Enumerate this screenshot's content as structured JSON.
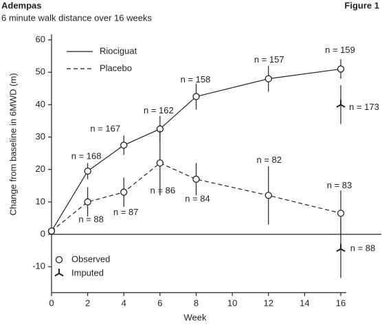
{
  "chart_data": {
    "type": "line",
    "title": "Adempas",
    "subtitle": "6 minute walk distance over 16 weeks",
    "figure_label": "Figure 1",
    "x_label": "Week",
    "y_label": "Change from baseline in 6MWD (m)",
    "x": [
      0,
      2,
      4,
      6,
      8,
      12,
      16
    ],
    "xlim": [
      0,
      16
    ],
    "xticks": [
      0,
      2,
      4,
      6,
      8,
      10,
      12,
      14,
      16
    ],
    "ylim": [
      -18,
      60
    ],
    "yticks": [
      -10,
      0,
      10,
      20,
      30,
      40,
      50,
      60
    ],
    "series": [
      {
        "name": "Riociguat",
        "color": "#222222",
        "dash": "solid",
        "values": [
          1,
          19.5,
          27.5,
          32.5,
          42.5,
          48,
          51
        ],
        "errors": [
          null,
          2.5,
          3,
          4,
          4,
          4,
          3
        ],
        "n_labels": [
          null,
          "n = 168",
          "n = 167",
          "n = 162",
          "n = 158",
          "n = 157",
          "n = 159"
        ],
        "imputed": {
          "x": 16,
          "value": 40,
          "error": 6,
          "n_label": "n = 173"
        }
      },
      {
        "name": "Placebo",
        "color": "#222222",
        "dash": "dashed",
        "values": [
          1,
          10,
          13,
          22,
          17,
          12,
          6.5
        ],
        "errors": [
          null,
          4.5,
          4.5,
          10,
          5,
          9,
          7
        ],
        "n_labels": [
          null,
          "n = 88",
          "n = 87",
          "n = 86",
          "n = 84",
          "n = 82",
          "n = 83"
        ],
        "imputed": {
          "x": 16,
          "value": -4.5,
          "error": 9,
          "n_label": "n = 88"
        }
      }
    ],
    "marker_legend": [
      "Observed",
      "Imputed"
    ]
  }
}
